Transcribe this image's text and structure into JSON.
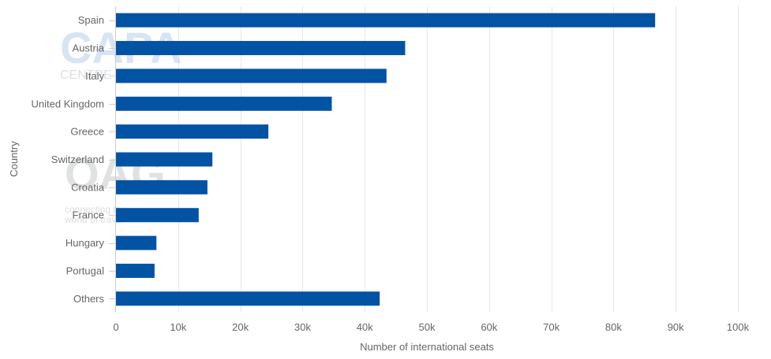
{
  "chart_data": {
    "type": "bar",
    "orientation": "horizontal",
    "categories": [
      "Spain",
      "Austria",
      "Italy",
      "United Kingdom",
      "Greece",
      "Switzerland",
      "Croatia",
      "France",
      "Hungary",
      "Portugal",
      "Others"
    ],
    "values": [
      86700,
      46500,
      43500,
      34700,
      24500,
      15500,
      14700,
      13300,
      6500,
      6200,
      42400
    ],
    "xlabel": "Number of international seats",
    "ylabel": "Country",
    "xlim": [
      0,
      100000
    ],
    "x_ticks": [
      0,
      10000,
      20000,
      30000,
      40000,
      50000,
      60000,
      70000,
      80000,
      90000,
      100000
    ],
    "x_tick_labels": [
      "0",
      "10k",
      "20k",
      "30k",
      "40k",
      "50k",
      "60k",
      "70k",
      "80k",
      "90k",
      "100k"
    ],
    "grid": "vertical",
    "bar_color": "#0353a4"
  },
  "watermarks": {
    "capa": {
      "main": "CAPA",
      "sub": "CENTRE FOR AVIATION"
    },
    "oag": {
      "main": "OAG",
      "line1": "connecting the",
      "line2": "world of travel"
    }
  }
}
